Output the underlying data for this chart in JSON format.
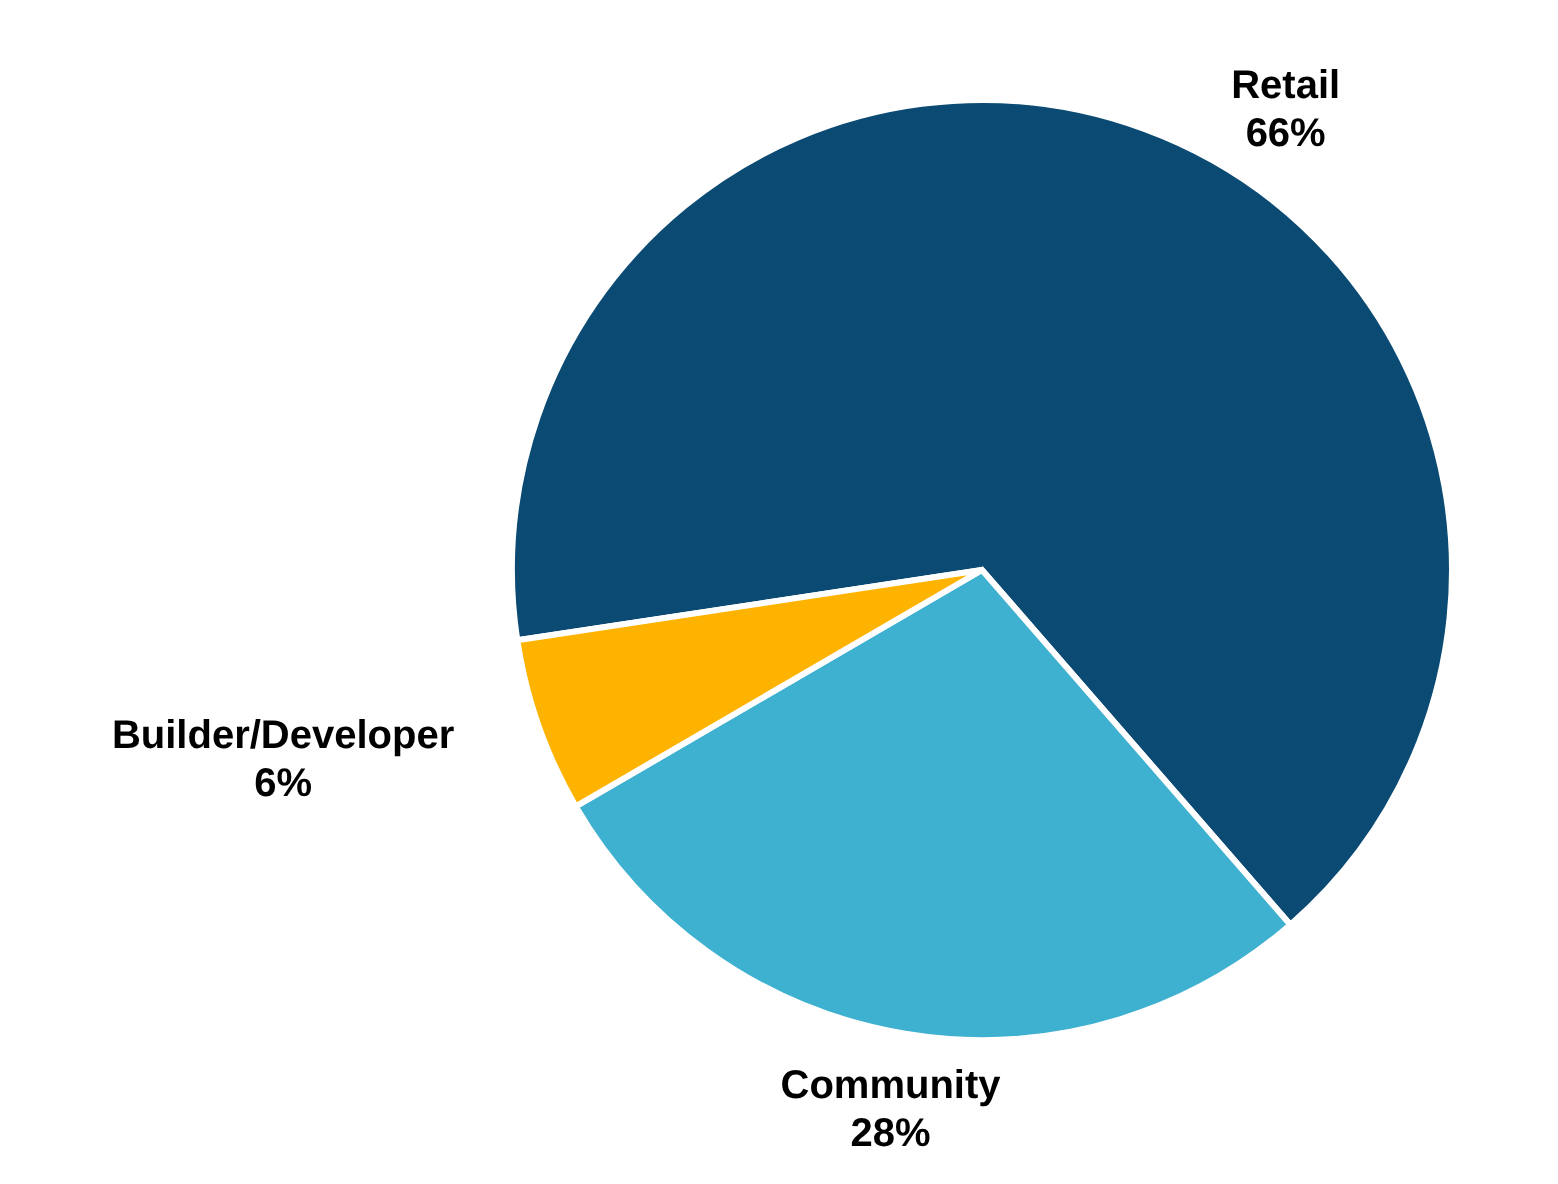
{
  "chart_data": {
    "type": "pie",
    "categories": [
      "Retail",
      "Community",
      "Builder/Developer"
    ],
    "values": [
      66,
      28,
      6
    ],
    "value_labels": [
      "66%",
      "28%",
      "6%"
    ],
    "colors": [
      "#0a4a73",
      "#3eb0d0",
      "#fdb300"
    ],
    "legend": false
  }
}
